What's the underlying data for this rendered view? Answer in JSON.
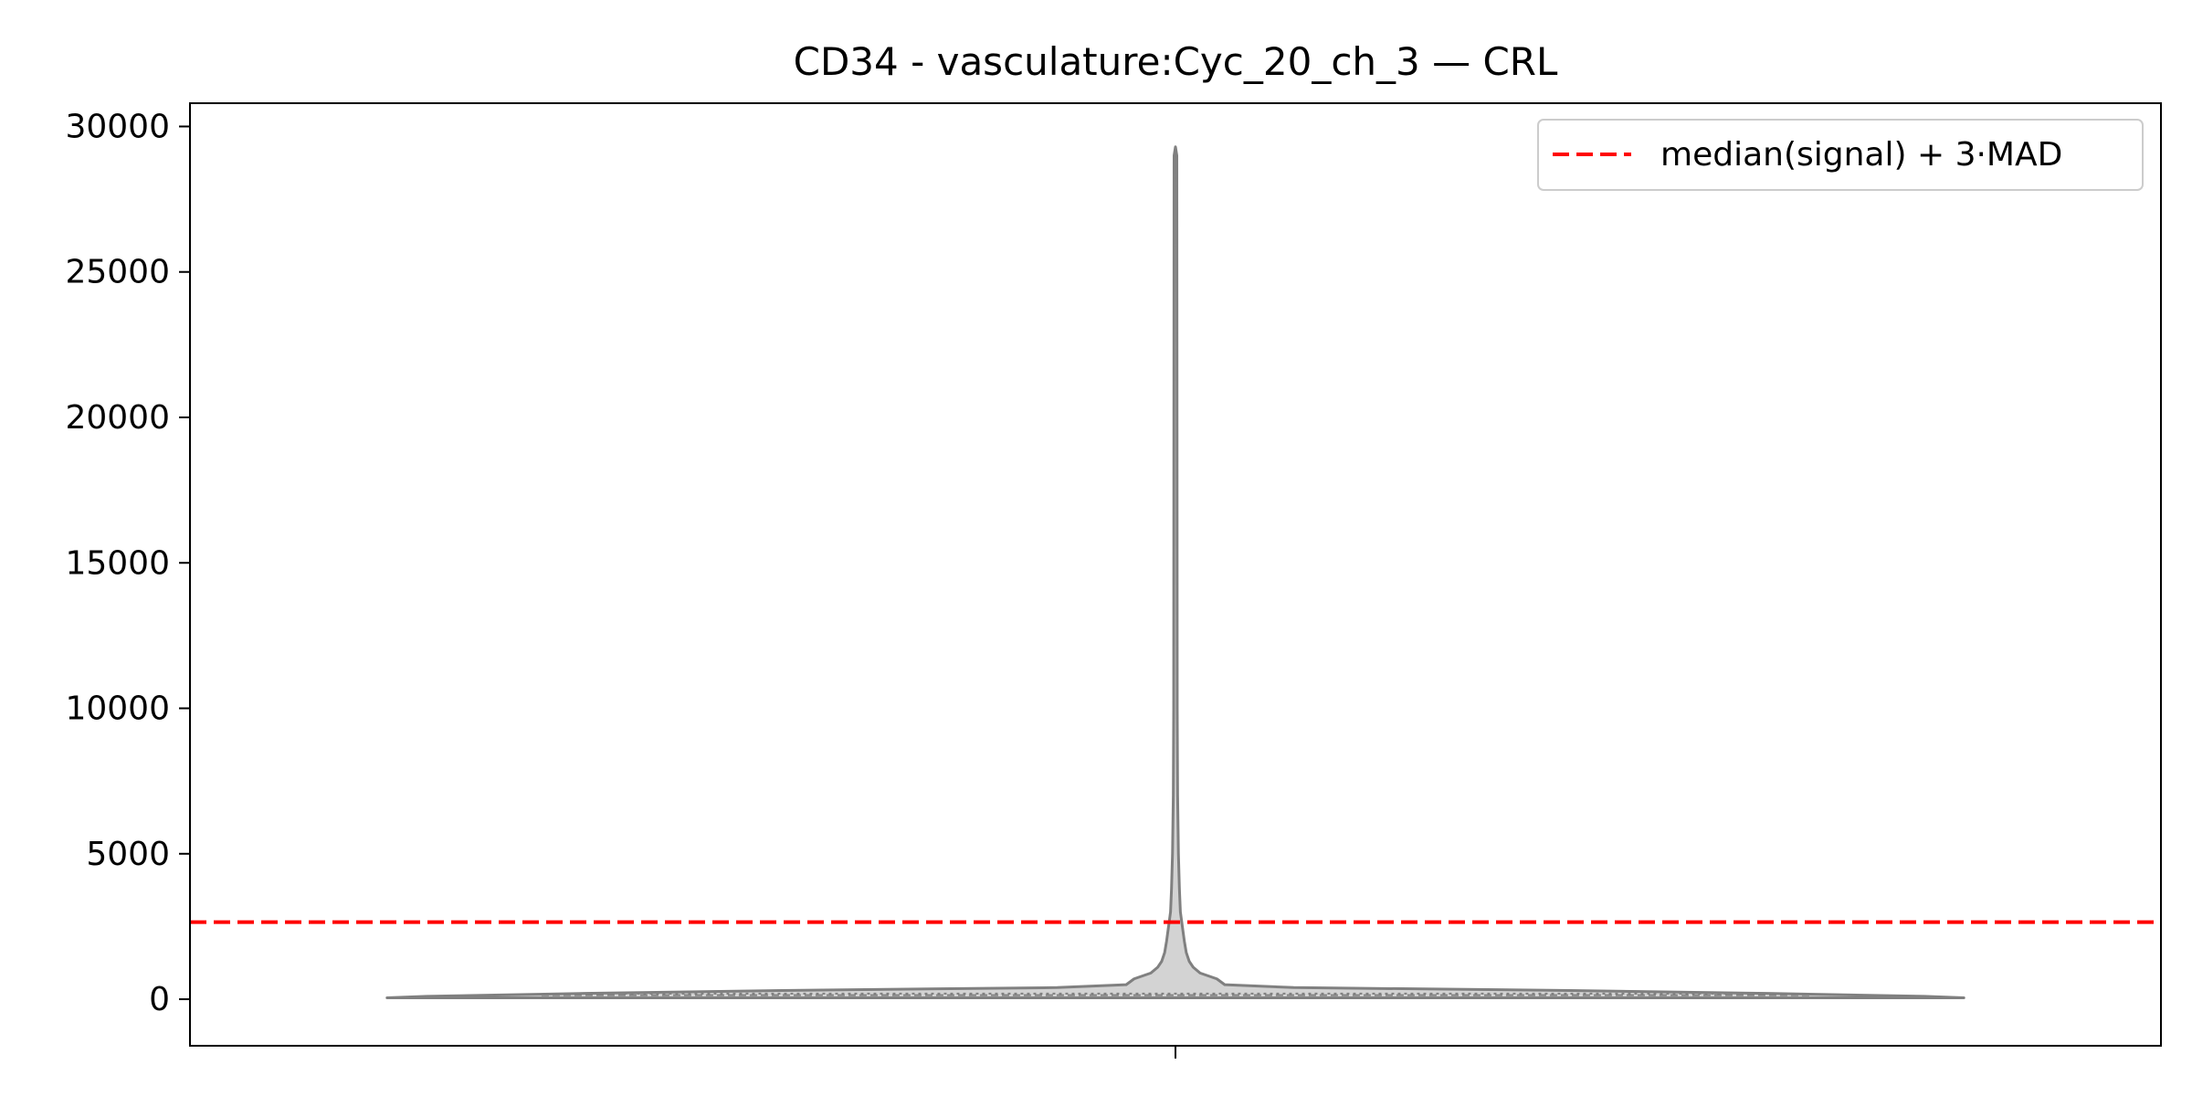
{
  "chart_data": {
    "type": "violin",
    "title": "CD34 - vasculature:Cyc_20_ch_3 — CRL",
    "xlabel": "",
    "ylabel": "",
    "ylim": [
      -1600,
      30800
    ],
    "yticks": [
      0,
      5000,
      10000,
      15000,
      20000,
      25000,
      30000
    ],
    "ytick_labels": [
      "0",
      "5000",
      "10000",
      "15000",
      "20000",
      "25000",
      "30000"
    ],
    "x_ticks": [
      ""
    ],
    "grid": false,
    "legend": {
      "placement": "top-right",
      "entries": [
        "median(signal) + 3·MAD"
      ]
    },
    "violin": {
      "min": 50,
      "max": 29300,
      "median": 120,
      "profile": [
        {
          "y": 50,
          "half_width": 0.8
        },
        {
          "y": 100,
          "half_width": 0.76
        },
        {
          "y": 200,
          "half_width": 0.6
        },
        {
          "y": 300,
          "half_width": 0.4
        },
        {
          "y": 400,
          "half_width": 0.12
        },
        {
          "y": 500,
          "half_width": 0.05
        },
        {
          "y": 700,
          "half_width": 0.042
        },
        {
          "y": 900,
          "half_width": 0.025
        },
        {
          "y": 1100,
          "half_width": 0.018
        },
        {
          "y": 1300,
          "half_width": 0.014
        },
        {
          "y": 1600,
          "half_width": 0.011
        },
        {
          "y": 2000,
          "half_width": 0.009
        },
        {
          "y": 2500,
          "half_width": 0.007
        },
        {
          "y": 3000,
          "half_width": 0.005
        },
        {
          "y": 3800,
          "half_width": 0.004
        },
        {
          "y": 5000,
          "half_width": 0.003
        },
        {
          "y": 7000,
          "half_width": 0.0022
        },
        {
          "y": 10000,
          "half_width": 0.0018
        },
        {
          "y": 20000,
          "half_width": 0.0016
        },
        {
          "y": 29000,
          "half_width": 0.0014
        },
        {
          "y": 29300,
          "half_width": 0.0
        }
      ],
      "fill_color": "#d3d3d3",
      "edge_color": "#808080"
    },
    "threshold": {
      "label": "median(signal) + 3·MAD",
      "value": 2650,
      "color": "#ff0000",
      "style": "dashed"
    }
  }
}
